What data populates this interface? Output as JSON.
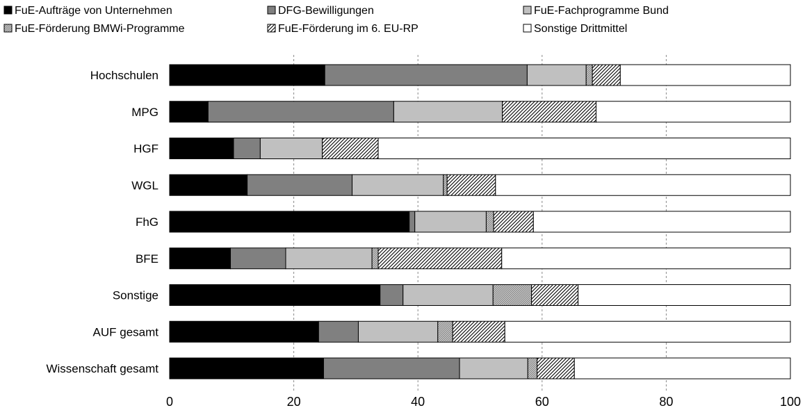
{
  "chart_data": {
    "type": "bar",
    "orientation": "horizontal",
    "stacked": true,
    "title": "",
    "xlabel": "",
    "ylabel": "",
    "xlim": [
      0,
      100
    ],
    "xticks": [
      0,
      20,
      40,
      60,
      80,
      100
    ],
    "grid": "vertical-dashed",
    "legend_position": "top",
    "categories": [
      "Hochschulen",
      "MPG",
      "HGF",
      "WGL",
      "FhG",
      "BFE",
      "Sonstige",
      "AUF gesamt",
      "Wissenschaft gesamt"
    ],
    "series": [
      {
        "name": "FuE-Aufträge von Unternehmen",
        "color": "#000000",
        "pattern": "solid",
        "values": [
          25.0,
          6.2,
          10.3,
          12.5,
          38.6,
          9.8,
          33.9,
          24.0,
          24.8
        ]
      },
      {
        "name": "DFG-Bewilligungen",
        "color": "#808080",
        "pattern": "solid",
        "values": [
          32.6,
          29.9,
          4.3,
          16.9,
          0.9,
          8.9,
          3.7,
          6.4,
          21.9
        ]
      },
      {
        "name": "FuE-Fachprogramme Bund",
        "color": "#c0c0c0",
        "pattern": "solid",
        "values": [
          9.5,
          17.5,
          10.0,
          14.7,
          11.5,
          13.9,
          14.5,
          12.8,
          11.0
        ]
      },
      {
        "name": "FuE-Förderung BMWi-Programme",
        "color": "#c0c0c0",
        "pattern": "fine-hatch",
        "values": [
          1.0,
          0.0,
          0.0,
          0.6,
          1.2,
          1.0,
          6.2,
          2.4,
          1.5
        ]
      },
      {
        "name": "FuE-Förderung im 6. EU-RP",
        "color": "#808080",
        "pattern": "hatch",
        "values": [
          4.5,
          15.1,
          9.0,
          7.8,
          6.4,
          19.9,
          7.5,
          8.4,
          6.0
        ]
      },
      {
        "name": "Sonstige Drittmittel",
        "color": "#ffffff",
        "pattern": "solid",
        "values": [
          27.4,
          31.3,
          66.4,
          47.5,
          41.4,
          46.5,
          34.2,
          46.0,
          34.8
        ]
      }
    ]
  }
}
